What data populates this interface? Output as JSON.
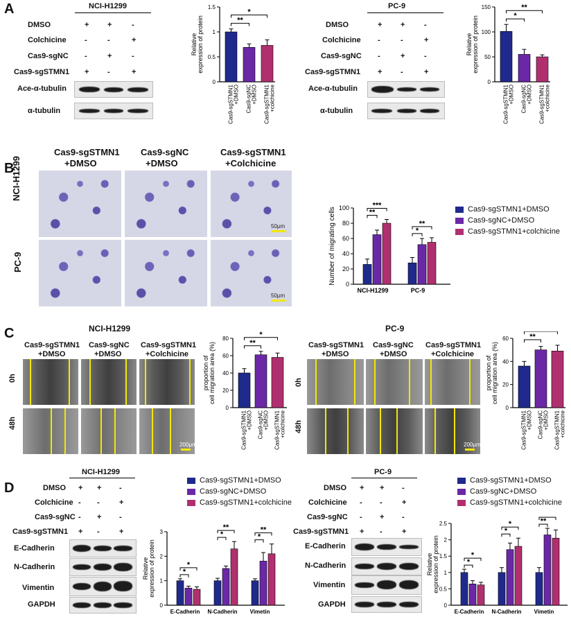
{
  "panel_labels": {
    "a": "A",
    "b": "B",
    "c": "C",
    "d": "D"
  },
  "colors": {
    "sgSTMN1_DMSO": "#1f2a8c",
    "sgNC_DMSO": "#6a28a6",
    "sgSTMN1_colchicine": "#b0306f",
    "scale": "#f2e800"
  },
  "panelA": {
    "left": {
      "cell_line": "NCI-H1299",
      "rows": [
        {
          "label": "DMSO",
          "v": [
            "+",
            "+",
            "-"
          ]
        },
        {
          "label": "Colchicine",
          "v": [
            "-",
            "-",
            "+"
          ]
        },
        {
          "label": "Cas9-sgNC",
          "v": [
            "-",
            "+",
            "-"
          ]
        },
        {
          "label": "Cas9-sgSTMN1",
          "v": [
            "+",
            "-",
            "+"
          ]
        }
      ],
      "blots": [
        "Ace-α-tubulin",
        "α-tubulin"
      ]
    },
    "right": {
      "cell_line": "PC-9",
      "rows": [
        {
          "label": "DMSO",
          "v": [
            "+",
            "+",
            "-"
          ]
        },
        {
          "label": "Colchicine",
          "v": [
            "-",
            "-",
            "+"
          ]
        },
        {
          "label": "Cas9-sgNC",
          "v": [
            "-",
            "+",
            "-"
          ]
        },
        {
          "label": "Cas9-sgSTMN1",
          "v": [
            "+",
            "-",
            "+"
          ]
        }
      ],
      "blots": [
        "Ace-α-tubulin",
        "α-tubulin"
      ]
    }
  },
  "panelB": {
    "columns": [
      "Cas9-sgSTMN1",
      "+DMSO",
      "Cas9-sgNC",
      "+DMSO",
      "Cas9-sgSTMN1",
      "+Colchicine"
    ],
    "rows": [
      "NCI-H1299",
      "PC-9"
    ],
    "scale": "50μm"
  },
  "panelC": {
    "left": {
      "cell_line": "NCI-H1299",
      "cols": [
        "Cas9-sgSTMN1",
        "+DMSO",
        "Cas9-sgNC",
        "+DMSO",
        "Cas9-sgSTMN1",
        "+Colchicine"
      ],
      "rows": [
        "0h",
        "48h"
      ],
      "scale": "200μm"
    },
    "right": {
      "cell_line": "PC-9",
      "cols": [
        "Cas9-sgSTMN1",
        "+DMSO",
        "Cas9-sgNC",
        "+DMSO",
        "Cas9-sgSTMN1",
        "+Colchicine"
      ],
      "rows": [
        "0h",
        "48h"
      ],
      "scale": "200μm"
    }
  },
  "panelD": {
    "left": {
      "cell_line": "NCI-H1299",
      "rows": [
        {
          "label": "DMSO",
          "v": [
            "+",
            "+",
            "-"
          ]
        },
        {
          "label": "Colchicine",
          "v": [
            "-",
            "-",
            "+"
          ]
        },
        {
          "label": "Cas9-sgNC",
          "v": [
            "-",
            "+",
            "-"
          ]
        },
        {
          "label": "Cas9-sgSTMN1",
          "v": [
            "+",
            "-",
            "+"
          ]
        }
      ],
      "blots": [
        "E-Cadherin",
        "N-Cadherin",
        "Vimentin",
        "GAPDH"
      ]
    },
    "right": {
      "cell_line": "PC-9",
      "rows": [
        {
          "label": "DMSO",
          "v": [
            "+",
            "+",
            "-"
          ]
        },
        {
          "label": "Colchicine",
          "v": [
            "-",
            "-",
            "+"
          ]
        },
        {
          "label": "Cas9-sgNC",
          "v": [
            "-",
            "+",
            "-"
          ]
        },
        {
          "label": "Cas9-sgSTMN1",
          "v": [
            "+",
            "-",
            "+"
          ]
        }
      ],
      "blots": [
        "E-Cadherin",
        "N-Cadherin",
        "Vimentin",
        "GAPDH"
      ]
    }
  },
  "chart_data": [
    {
      "id": "A-left",
      "type": "bar",
      "ylabel": "Relative\nexpression of protein",
      "ylim": [
        0,
        1.5
      ],
      "yticks": [
        0,
        0.5,
        1.0,
        1.5
      ],
      "categories": [
        "Cas9-sgSTMN1\n+DMSO",
        "Cas9-sgNC\n+DMSO",
        "Cas9-sgSTMN1\n+colchicine"
      ],
      "values": [
        1.0,
        0.69,
        0.73
      ],
      "errors": [
        0.06,
        0.07,
        0.11
      ],
      "sig": [
        {
          "from": 0,
          "to": 1,
          "label": "**"
        },
        {
          "from": 0,
          "to": 2,
          "label": "*"
        }
      ]
    },
    {
      "id": "A-right",
      "type": "bar",
      "ylabel": "Relative\nexpression of protein",
      "ylim": [
        0,
        150
      ],
      "yticks": [
        0,
        50,
        100,
        150
      ],
      "categories": [
        "Cas9-sgSTMN1\n+DMSO",
        "Cas9-sgNC\n+DMSO",
        "Cas9-sgSTMN1\n+colchicine"
      ],
      "values": [
        101,
        55,
        50
      ],
      "errors": [
        14,
        10,
        4
      ],
      "sig": [
        {
          "from": 0,
          "to": 1,
          "label": "*"
        },
        {
          "from": 0,
          "to": 2,
          "label": "**"
        }
      ]
    },
    {
      "id": "B",
      "type": "bar",
      "ylabel": "Number of migrating cells",
      "ylim": [
        0,
        100
      ],
      "yticks": [
        0,
        20,
        40,
        60,
        80,
        100
      ],
      "categories": [
        "NCI-H1299",
        "PC-9"
      ],
      "series": [
        {
          "name": "Cas9-sgSTMN1+DMSO",
          "values": [
            26,
            28
          ],
          "errors": [
            7,
            7
          ]
        },
        {
          "name": "Cas9-sgNC+DMSO",
          "values": [
            65,
            52
          ],
          "errors": [
            6,
            8
          ]
        },
        {
          "name": "Cas9-sgSTMN1+colchicine",
          "values": [
            80,
            55
          ],
          "errors": [
            5,
            6
          ]
        }
      ],
      "sig": [
        {
          "group": 0,
          "from": 0,
          "to": 1,
          "label": "**"
        },
        {
          "group": 0,
          "from": 0,
          "to": 2,
          "label": "***"
        },
        {
          "group": 1,
          "from": 0,
          "to": 1,
          "label": "*"
        },
        {
          "group": 1,
          "from": 0,
          "to": 2,
          "label": "**"
        }
      ],
      "legend": "right"
    },
    {
      "id": "C-left",
      "type": "bar",
      "ylabel": "proportion of\ncell migration area (%)",
      "ylim": [
        0,
        80
      ],
      "yticks": [
        0,
        20,
        40,
        60,
        80
      ],
      "categories": [
        "Cas9-sgSTMN1\n+DMSO",
        "Cas9-sgNC\n+DMSO",
        "Cas9-sgSTMN1\n+colchicine"
      ],
      "values": [
        40,
        61,
        58
      ],
      "errors": [
        5,
        4,
        5
      ],
      "sig": [
        {
          "from": 0,
          "to": 1,
          "label": "**"
        },
        {
          "from": 0,
          "to": 2,
          "label": "*"
        }
      ]
    },
    {
      "id": "C-right",
      "type": "bar",
      "ylabel": "proportion of\ncell migration area (%)",
      "ylim": [
        0,
        60
      ],
      "yticks": [
        0,
        20,
        40,
        60
      ],
      "categories": [
        "Cas9-sgSTMN1\n+DMSO",
        "Cas9-sgNC\n+DMSO",
        "Cas9-sgSTMN1\n+colchicine"
      ],
      "values": [
        36,
        50,
        49
      ],
      "errors": [
        4,
        3,
        5
      ],
      "sig": [
        {
          "from": 0,
          "to": 1,
          "label": "**"
        },
        {
          "from": 0,
          "to": 2,
          "label": "*"
        }
      ]
    },
    {
      "id": "D-left",
      "type": "bar",
      "ylabel": "Relative\nexpression of protein",
      "ylim": [
        0,
        3
      ],
      "yticks": [
        0,
        1,
        2,
        3
      ],
      "categories": [
        "E-Cadherin",
        "N-Cadherin",
        "Vimetin"
      ],
      "series": [
        {
          "name": "Cas9-sgSTMN1+DMSO",
          "values": [
            1.0,
            1.0,
            1.0
          ],
          "errors": [
            0.08,
            0.1,
            0.08
          ]
        },
        {
          "name": "Cas9-sgNC+DMSO",
          "values": [
            0.7,
            1.5,
            1.8
          ],
          "errors": [
            0.08,
            0.1,
            0.35
          ]
        },
        {
          "name": "Cas9-sgSTMN1+colchicine",
          "values": [
            0.65,
            2.3,
            2.1
          ],
          "errors": [
            0.1,
            0.3,
            0.4
          ]
        }
      ],
      "sig": [
        {
          "group": 0,
          "from": 0,
          "to": 1,
          "label": "*"
        },
        {
          "group": 0,
          "from": 0,
          "to": 2,
          "label": "*"
        },
        {
          "group": 1,
          "from": 0,
          "to": 1,
          "label": "*"
        },
        {
          "group": 1,
          "from": 0,
          "to": 2,
          "label": "**"
        },
        {
          "group": 2,
          "from": 0,
          "to": 1,
          "label": "*"
        },
        {
          "group": 2,
          "from": 0,
          "to": 2,
          "label": "**"
        }
      ],
      "legend": "top"
    },
    {
      "id": "D-right",
      "type": "bar",
      "ylabel": "Relative\nexpression of protein",
      "ylim": [
        0,
        2.5
      ],
      "yticks": [
        0,
        0.5,
        1.0,
        1.5,
        2.0,
        2.5
      ],
      "categories": [
        "E-Cadherin",
        "N-Cadherin",
        "Vimetin"
      ],
      "series": [
        {
          "name": "Cas9-sgSTMN1+DMSO",
          "values": [
            1.0,
            1.0,
            1.0
          ],
          "errors": [
            0.1,
            0.15,
            0.15
          ]
        },
        {
          "name": "Cas9-sgNC+DMSO",
          "values": [
            0.65,
            1.7,
            2.15
          ],
          "errors": [
            0.1,
            0.2,
            0.2
          ]
        },
        {
          "name": "Cas9-sgSTMN1+colchicine",
          "values": [
            0.62,
            1.8,
            2.05
          ],
          "errors": [
            0.08,
            0.25,
            0.25
          ]
        }
      ],
      "sig": [
        {
          "group": 0,
          "from": 0,
          "to": 1,
          "label": "*"
        },
        {
          "group": 0,
          "from": 0,
          "to": 2,
          "label": "*"
        },
        {
          "group": 1,
          "from": 0,
          "to": 1,
          "label": "*"
        },
        {
          "group": 1,
          "from": 0,
          "to": 2,
          "label": "*"
        },
        {
          "group": 2,
          "from": 0,
          "to": 1,
          "label": "**"
        },
        {
          "group": 2,
          "from": 0,
          "to": 2,
          "label": "**"
        }
      ],
      "legend": "top"
    }
  ]
}
